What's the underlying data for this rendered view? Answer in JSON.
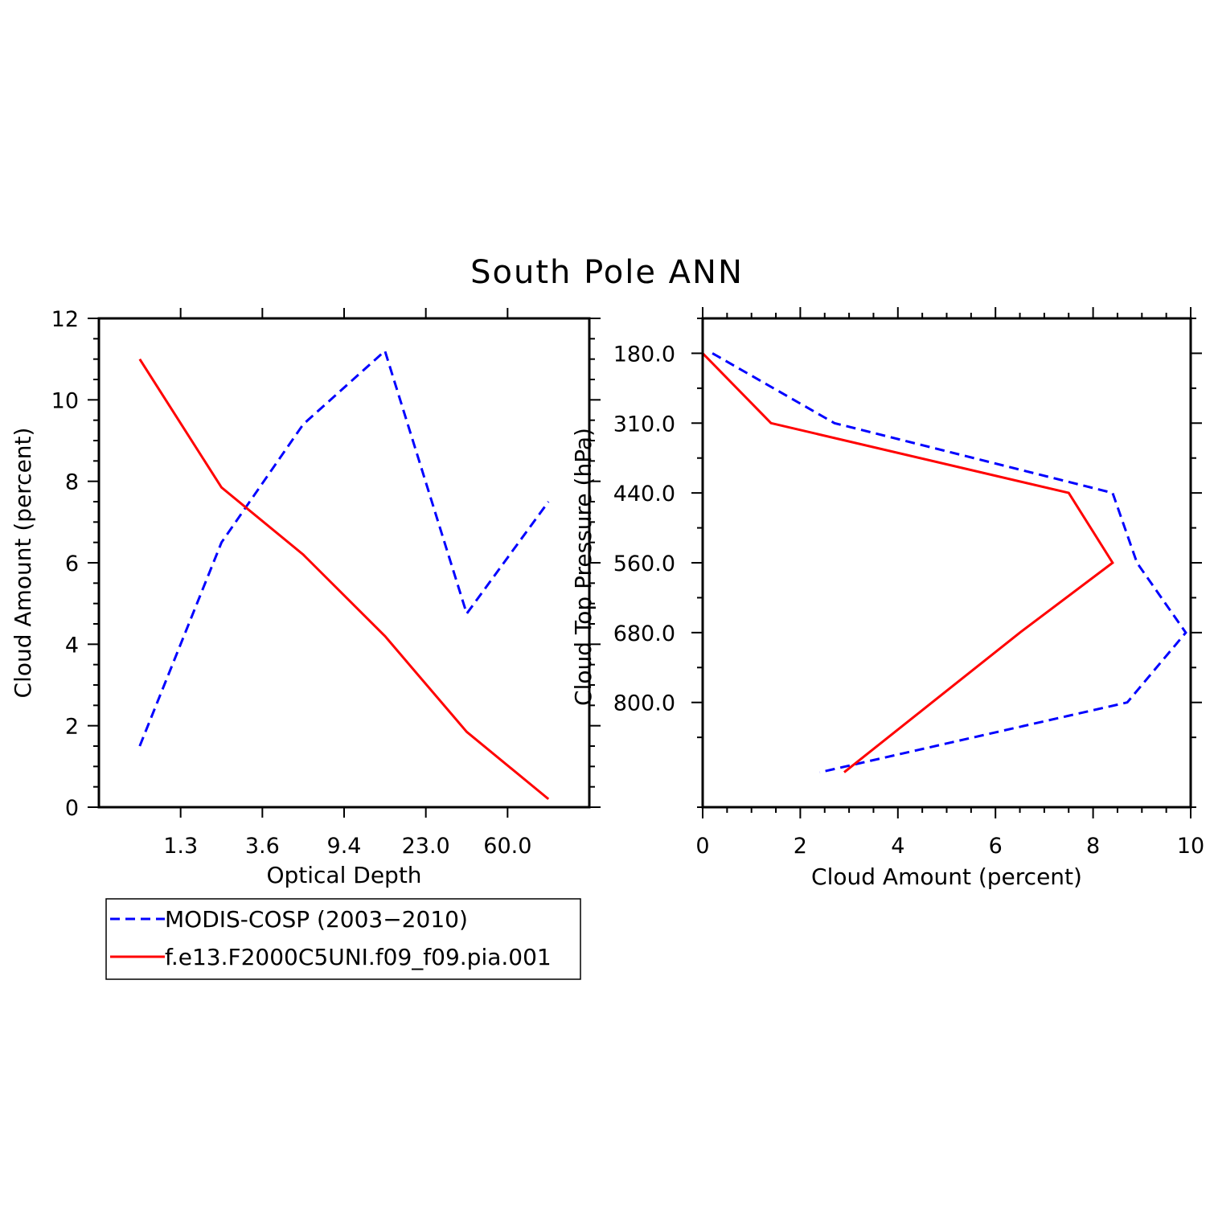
{
  "title": "South Pole ANN",
  "colors": {
    "obs": "#0000ff",
    "model": "#ff0000",
    "axis": "#000000"
  },
  "chart_data": [
    {
      "type": "line",
      "xlabel": "Optical Depth",
      "ylabel": "Cloud Amount (percent)",
      "ylim": [
        0,
        12
      ],
      "yticks": [
        "0",
        "2",
        "4",
        "6",
        "8",
        "10",
        "12"
      ],
      "x_bins": [
        0,
        1,
        2,
        3,
        4,
        5
      ],
      "xlim": [
        -0.5,
        5.5
      ],
      "xtick_labels": [
        "1.3",
        "3.6",
        "9.4",
        "23.0",
        "60.0"
      ],
      "xtick_positions": [
        0.5,
        1.5,
        2.5,
        3.5,
        4.5
      ],
      "series": [
        {
          "name": "MODIS-COSP (2003-2010)",
          "style": "dashed",
          "color": "#0000ff",
          "values": [
            1.5,
            6.5,
            9.4,
            11.2,
            4.75,
            7.5
          ]
        },
        {
          "name": "f.e13.F2000C5UNI.f09_f09.pia.001",
          "style": "solid",
          "color": "#ff0000",
          "values": [
            11.0,
            7.85,
            6.2,
            4.2,
            1.85,
            0.2
          ]
        }
      ]
    },
    {
      "type": "line",
      "orientation": "horizontal",
      "xlabel": "Cloud Amount (percent)",
      "ylabel": "Cloud Top Pressure (hPa)",
      "xlim": [
        0,
        10
      ],
      "xticks": [
        "0",
        "2",
        "4",
        "6",
        "8",
        "10"
      ],
      "p_bins": [
        0,
        1,
        2,
        3,
        4,
        5,
        6
      ],
      "ylim": [
        -0.5,
        6.5
      ],
      "ytick_labels": [
        "180.0",
        "310.0",
        "440.0",
        "560.0",
        "680.0",
        "800.0"
      ],
      "ytick_positions": [
        0,
        1,
        2,
        3,
        4,
        5
      ],
      "series": [
        {
          "name": "MODIS-COSP (2003-2010)",
          "style": "dashed",
          "color": "#0000ff",
          "values": [
            0.2,
            2.7,
            8.4,
            8.9,
            9.9,
            8.7,
            2.4
          ]
        },
        {
          "name": "f.e13.F2000C5UNI.f09_f09.pia.001",
          "style": "solid",
          "color": "#ff0000",
          "values": [
            0.0,
            1.4,
            7.5,
            8.4,
            6.5,
            4.7,
            2.9
          ]
        }
      ]
    }
  ],
  "legend": {
    "entries": [
      {
        "label": "MODIS-COSP (2003−2010)",
        "style": "dashed",
        "color": "#0000ff"
      },
      {
        "label": "f.e13.F2000C5UNI.f09_f09.pia.001",
        "style": "solid",
        "color": "#ff0000"
      }
    ]
  }
}
